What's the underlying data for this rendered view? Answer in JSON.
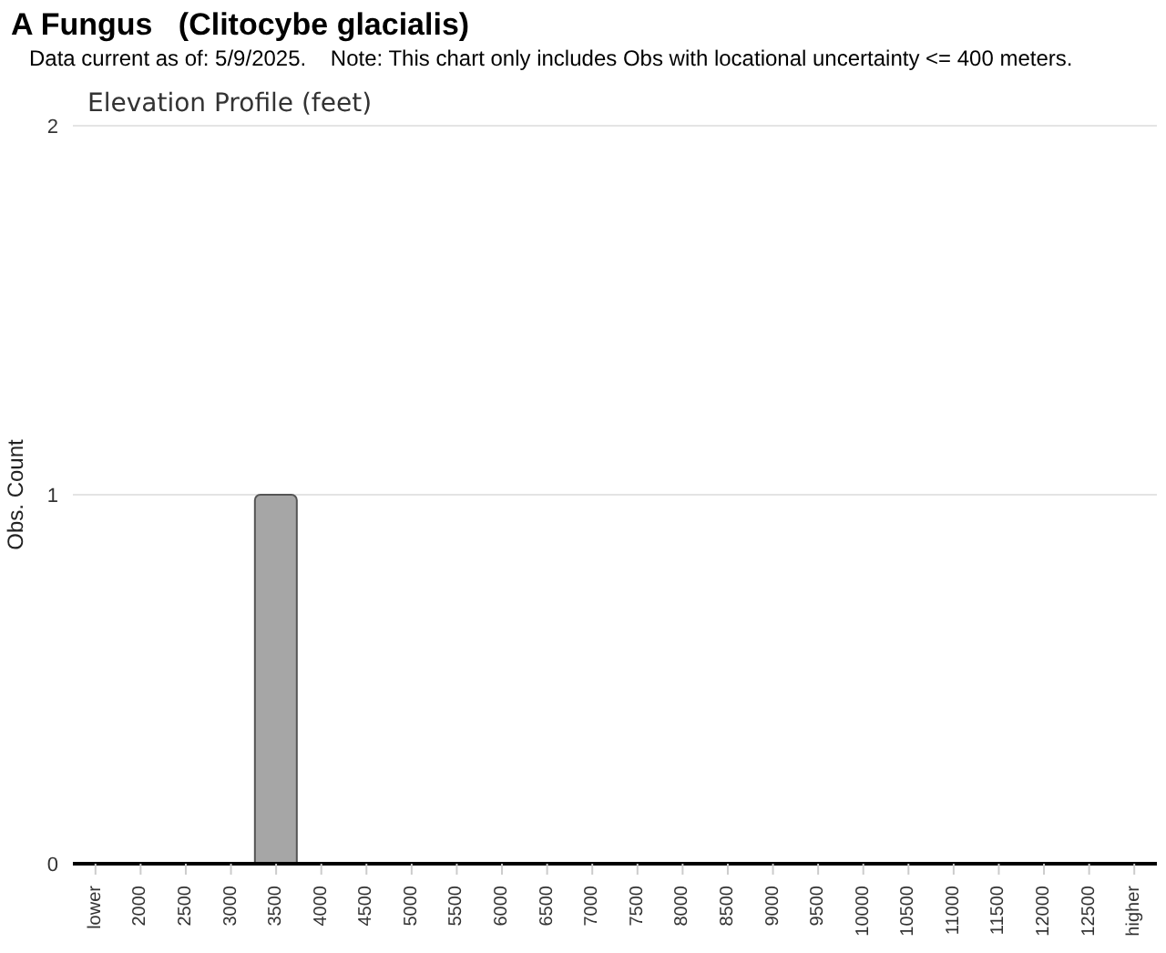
{
  "chart_data": {
    "type": "bar",
    "title": "A Fungus   (Clitocybe glacialis)",
    "subtitle": "Data current as of: 5/9/2025.    Note: This chart only includes Obs with locational uncertainty <= 400 meters.",
    "annotations": [
      "Elevation Profile (feet)"
    ],
    "ylabel": "Obs. Count",
    "categories": [
      "lower",
      "2000",
      "2500",
      "3000",
      "3500",
      "4000",
      "4500",
      "5000",
      "5500",
      "6000",
      "6500",
      "7000",
      "7500",
      "8000",
      "8500",
      "9000",
      "9500",
      "10000",
      "10500",
      "11000",
      "11500",
      "12000",
      "12500",
      "higher"
    ],
    "values": [
      0,
      0,
      0,
      0,
      1,
      0,
      0,
      0,
      0,
      0,
      0,
      0,
      0,
      0,
      0,
      0,
      0,
      0,
      0,
      0,
      0,
      0,
      0,
      0
    ],
    "color": "#a6a6a6",
    "ylim": [
      0,
      2
    ],
    "yticks": [
      0,
      1,
      2
    ],
    "grid": "y"
  }
}
